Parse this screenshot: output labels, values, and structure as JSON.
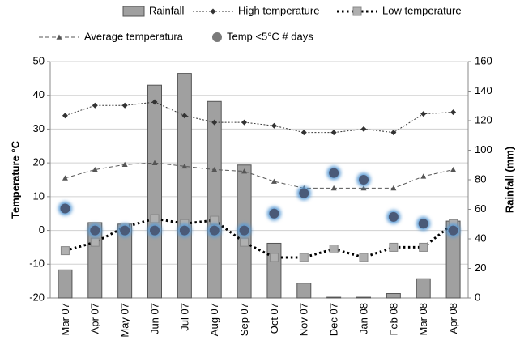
{
  "chart_data": {
    "type": "combo",
    "categories": [
      "Mar 07",
      "Apr 07",
      "May 07",
      "Jun 07",
      "Jul 07",
      "Aug 07",
      "Sep 07",
      "Oct 07",
      "Nov 07",
      "Dec 07",
      "Jan 08",
      "Feb 08",
      "Mar 08",
      "Apr 08"
    ],
    "ylabel": "Temperature °C",
    "y2label": "Rainfall (mm)",
    "ylim": [
      -20,
      50
    ],
    "yticks": [
      -20,
      -10,
      0,
      10,
      20,
      30,
      40,
      50
    ],
    "y2lim": [
      0,
      160
    ],
    "y2ticks": [
      0,
      20,
      40,
      60,
      80,
      100,
      120,
      140,
      160
    ],
    "grid": true,
    "series": [
      {
        "name": "Rainfall",
        "type": "bar",
        "axis": "y2",
        "color": "#a0a0a0",
        "values": [
          19,
          51,
          50,
          144,
          152,
          133,
          90,
          37,
          10,
          0.5,
          0.5,
          3,
          13,
          52
        ]
      },
      {
        "name": "High temperature",
        "type": "line",
        "marker": "diamond",
        "line_style": "dotted",
        "color": "#333333",
        "values": [
          34,
          37,
          37,
          38,
          34,
          32,
          32,
          31,
          29,
          29,
          30,
          29,
          34.5,
          35
        ]
      },
      {
        "name": "Low temperature",
        "type": "line",
        "marker": "square",
        "line_style": "heavy-dotted",
        "color": "#000000",
        "values": [
          -6,
          -3.5,
          1,
          3.5,
          2,
          3,
          -3.5,
          -8,
          -8,
          -5.5,
          -8,
          -5,
          -5,
          2
        ]
      },
      {
        "name": "Average temperatura",
        "type": "line",
        "marker": "triangle",
        "line_style": "dashed",
        "color": "#555555",
        "values": [
          15.5,
          18,
          19.5,
          20,
          19,
          18,
          17.5,
          14.5,
          12.5,
          12.5,
          12.5,
          12.5,
          16,
          18
        ]
      },
      {
        "name": "Temp <5°C # days",
        "type": "scatter",
        "marker": "circle",
        "color": "#4a5a78",
        "values": [
          6.5,
          0,
          0,
          0,
          0,
          0,
          0,
          5,
          11,
          17,
          15,
          4,
          2,
          0
        ]
      }
    ]
  }
}
